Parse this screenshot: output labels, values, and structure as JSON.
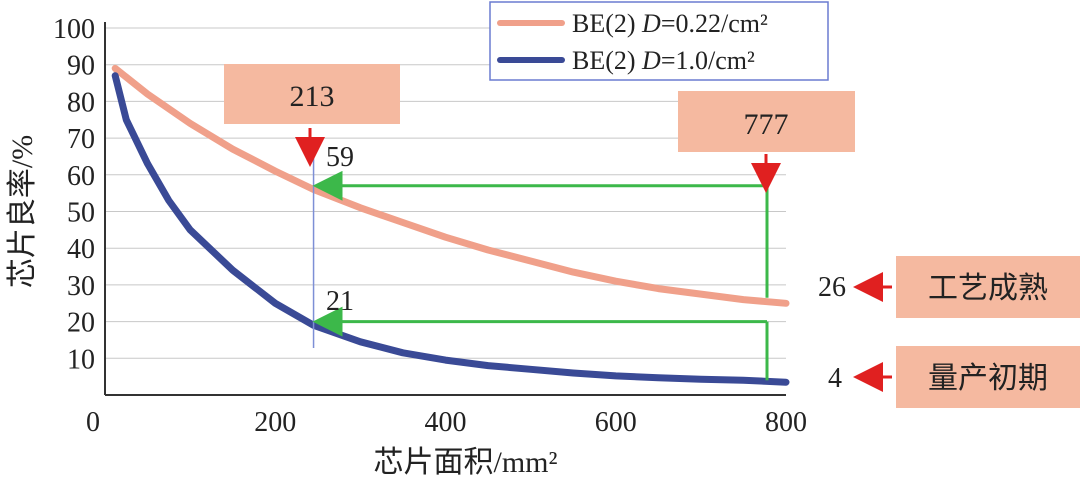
{
  "chart_data": {
    "type": "line",
    "xlabel": "芯片面积/mm²",
    "ylabel": "芯片良率/%",
    "xlim": [
      0,
      800
    ],
    "ylim": [
      0,
      100
    ],
    "xticks": [
      0,
      200,
      400,
      600,
      800
    ],
    "yticks": [
      10,
      20,
      30,
      40,
      50,
      60,
      70,
      80,
      90,
      100
    ],
    "grid": "horizontal",
    "legend_position": "top-right",
    "series": [
      {
        "name_prefix": "BE(2) ",
        "name_italic": "D",
        "name_suffix": "=0.22/cm²",
        "color": "#f0a08a",
        "x": [
          12,
          50,
          100,
          150,
          200,
          245,
          300,
          350,
          400,
          450,
          500,
          550,
          600,
          650,
          700,
          750,
          800
        ],
        "y": [
          89,
          82,
          74,
          67,
          61,
          56,
          51,
          47,
          43,
          39.5,
          36.5,
          33.5,
          31,
          29,
          27.5,
          26,
          25
        ]
      },
      {
        "name_prefix": "BE(2) ",
        "name_italic": "D",
        "name_suffix": "=1.0/cm²",
        "color": "#3a4a96",
        "x": [
          12,
          25,
          50,
          75,
          100,
          150,
          200,
          245,
          300,
          350,
          400,
          450,
          500,
          550,
          600,
          650,
          700,
          750,
          800
        ],
        "y": [
          87,
          75,
          63,
          53,
          45,
          34,
          25,
          19,
          14.5,
          11.5,
          9.5,
          8,
          7,
          6,
          5.2,
          4.7,
          4.3,
          4,
          3.5
        ]
      }
    ],
    "vertical_marker_x": 245,
    "annotations": {
      "box_213": "213",
      "box_777": "777",
      "val_59": "59",
      "val_21": "21",
      "val_26": "26",
      "val_4": "4",
      "label_mature": "工艺成熟",
      "label_early": "量产初期"
    },
    "colors": {
      "callout_fill": "#f5b9a0",
      "arrow_red": "#e02020",
      "arrow_green": "#3cb84a",
      "marker_blue": "#7d8fd6",
      "grid": "#c8c8c8"
    }
  }
}
